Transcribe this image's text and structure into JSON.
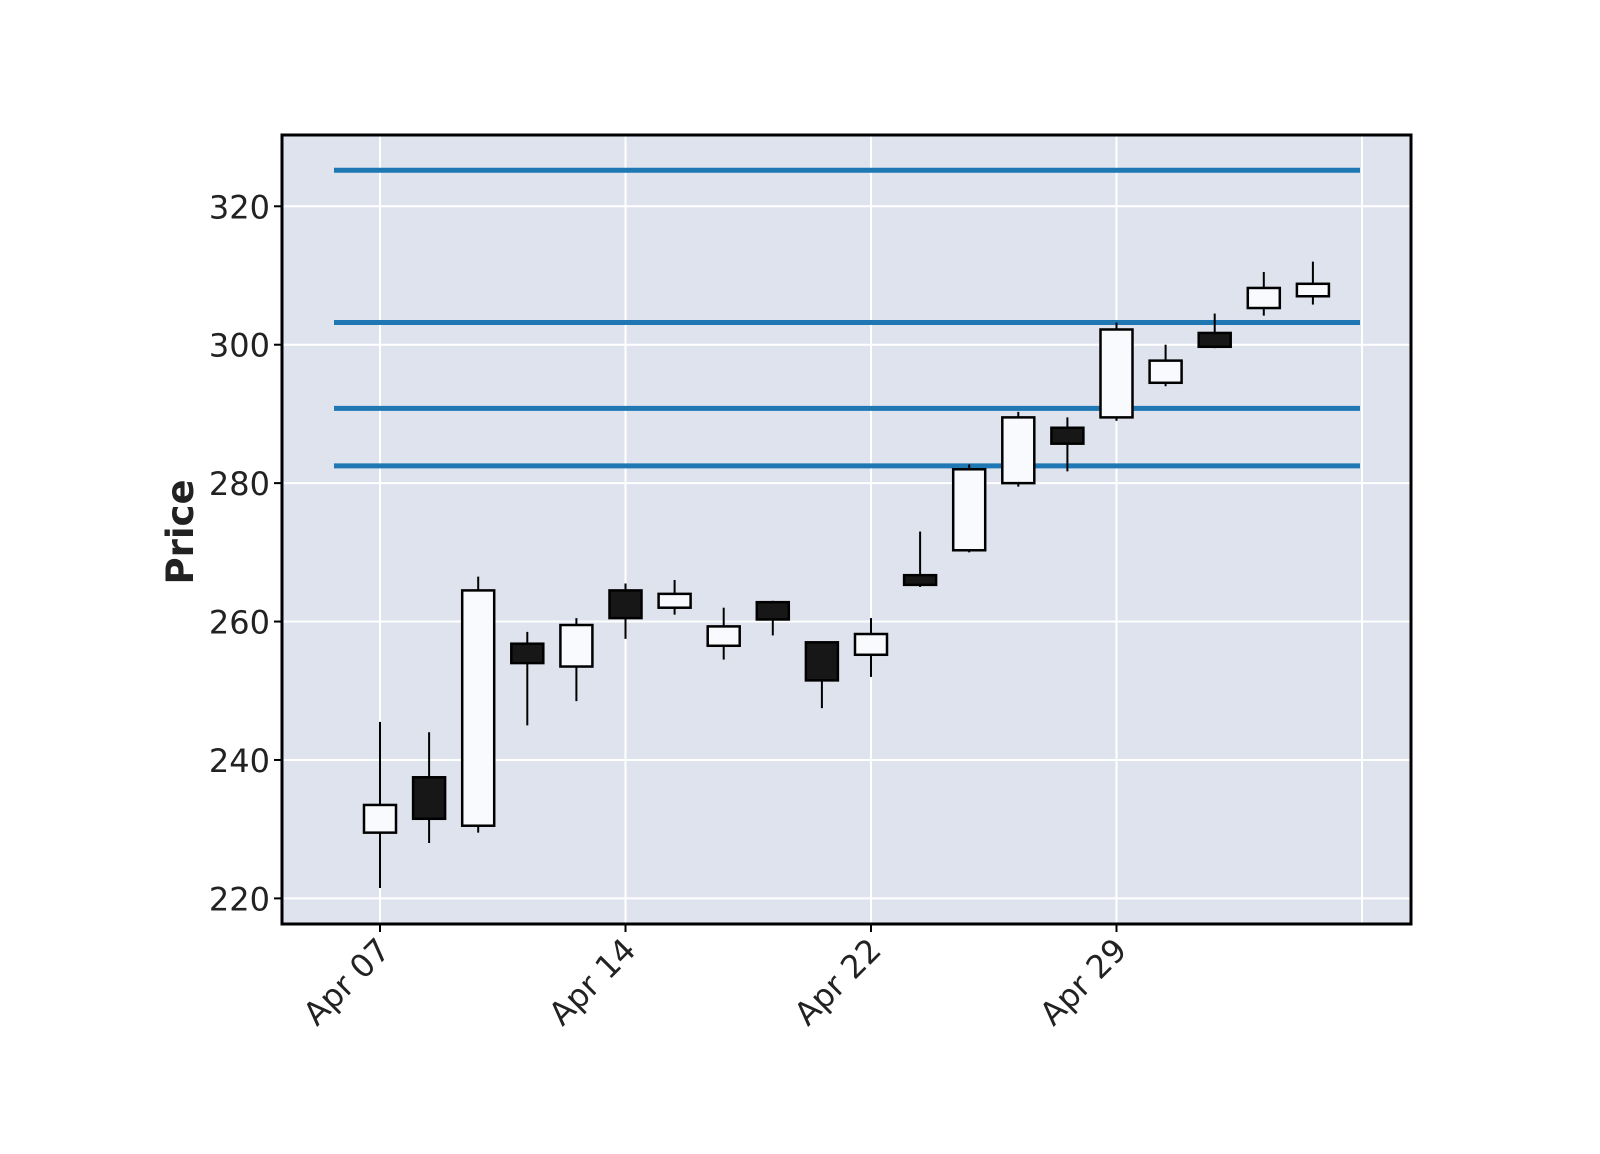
{
  "chart_data": {
    "type": "candlestick",
    "title": "",
    "xlabel": "",
    "ylabel": "Price",
    "ylim": [
      216.3,
      330.3
    ],
    "grid": true,
    "x_tick_labels": [
      "Apr 07",
      "Apr 14",
      "Apr 22",
      "Apr 29"
    ],
    "x_tick_positions": [
      0,
      5,
      10,
      15
    ],
    "y_ticks": [
      220,
      240,
      260,
      280,
      300,
      320
    ],
    "candles": [
      {
        "open": 229.5,
        "high": 245.5,
        "low": 221.5,
        "close": 233.5
      },
      {
        "open": 237.5,
        "high": 244.0,
        "low": 228.0,
        "close": 231.5
      },
      {
        "open": 230.5,
        "high": 266.5,
        "low": 229.5,
        "close": 264.5
      },
      {
        "open": 256.8,
        "high": 258.5,
        "low": 245.0,
        "close": 254.0
      },
      {
        "open": 253.5,
        "high": 260.5,
        "low": 248.5,
        "close": 259.5
      },
      {
        "open": 264.5,
        "high": 265.5,
        "low": 257.5,
        "close": 260.5
      },
      {
        "open": 262.0,
        "high": 266.0,
        "low": 261.0,
        "close": 264.0
      },
      {
        "open": 256.5,
        "high": 262.0,
        "low": 254.5,
        "close": 259.3
      },
      {
        "open": 262.8,
        "high": 263.0,
        "low": 258.0,
        "close": 260.3
      },
      {
        "open": 257.0,
        "high": 257.0,
        "low": 247.5,
        "close": 251.5
      },
      {
        "open": 255.2,
        "high": 260.5,
        "low": 252.0,
        "close": 258.2
      },
      {
        "open": 266.7,
        "high": 273.0,
        "low": 265.0,
        "close": 265.3
      },
      {
        "open": 270.3,
        "high": 282.7,
        "low": 270.0,
        "close": 282.0
      },
      {
        "open": 280.0,
        "high": 290.3,
        "low": 279.5,
        "close": 289.5
      },
      {
        "open": 288.0,
        "high": 289.5,
        "low": 281.7,
        "close": 285.7
      },
      {
        "open": 289.5,
        "high": 303.2,
        "low": 289.0,
        "close": 302.2
      },
      {
        "open": 294.5,
        "high": 300.0,
        "low": 294.0,
        "close": 297.7
      },
      {
        "open": 301.7,
        "high": 304.5,
        "low": 299.5,
        "close": 299.7
      },
      {
        "open": 305.3,
        "high": 310.5,
        "low": 304.2,
        "close": 308.2
      },
      {
        "open": 307.0,
        "high": 312.0,
        "low": 305.8,
        "close": 308.8
      }
    ],
    "hlines": [
      325.2,
      303.2,
      290.8,
      282.5
    ]
  },
  "colors": {
    "background": "#dee3ee",
    "grid": "#ffffff",
    "up_fill": "#f8fafd",
    "down_fill": "#171717",
    "candle_edge": "#000000",
    "hline": "#1f77b4",
    "frame": "#000000"
  }
}
